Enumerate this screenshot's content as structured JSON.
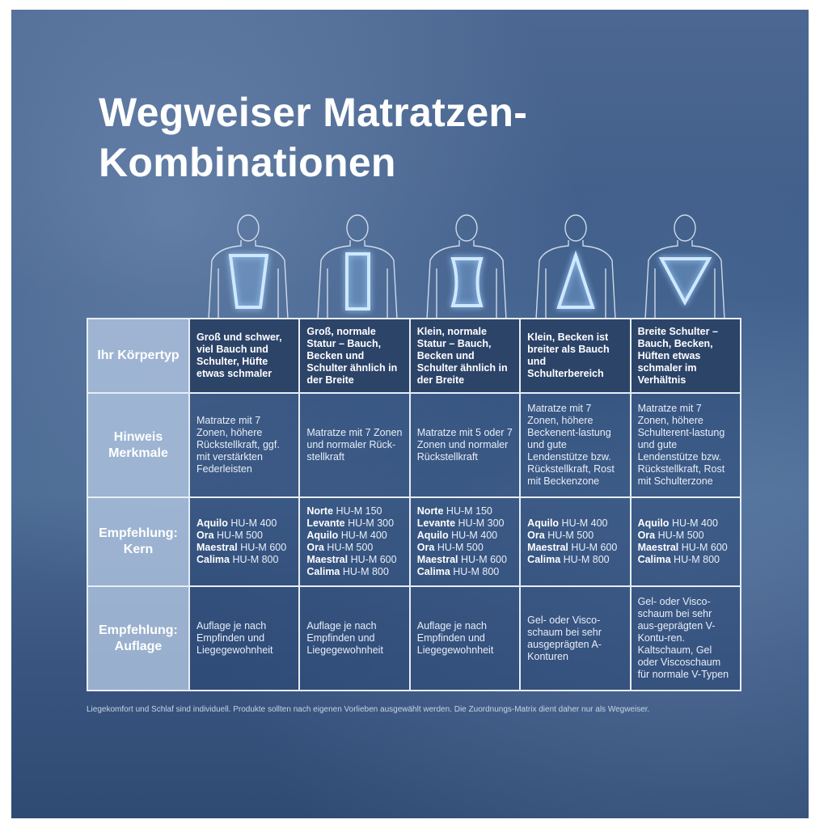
{
  "title": [
    "Wegweiser Matratzen-",
    "Kombinationen"
  ],
  "figures": [
    {
      "shape": "trapezoid-icon"
    },
    {
      "shape": "rectangle-icon"
    },
    {
      "shape": "hourglass-icon"
    },
    {
      "shape": "triangle-a-icon"
    },
    {
      "shape": "triangle-v-icon"
    }
  ],
  "table": {
    "rows": [
      {
        "label": "Ihr Körpertyp",
        "cells": [
          "Groß und schwer, viel Bauch und Schulter, Hüfte etwas schmaler",
          "Groß, normale Statur – Bauch, Becken und Schulter ähnlich in der Breite",
          "Klein, normale Statur – Bauch, Becken und Schulter ähnlich in der Breite",
          "Klein, Becken ist breiter als Bauch und Schulterbereich",
          "Breite Schulter – Bauch, Becken, Hüften etwas schmaler im Verhältnis"
        ]
      },
      {
        "label": "Hinweis Merkmale",
        "cells": [
          "Matratze mit 7 Zonen, höhere Rückstellkraft, ggf. mit verstärkten Federleisten",
          "Matratze mit 7 Zonen und normaler Rück-stellkraft",
          "Matratze mit 5 oder 7 Zonen und normaler Rückstellkraft",
          "Matratze mit 7 Zonen, höhere Beckenent-lastung und gute Lendenstütze bzw. Rückstellkraft, Rost mit Beckenzone",
          "Matratze mit 7 Zonen, höhere Schulterent-lastung und gute Lendenstütze bzw. Rückstellkraft, Rost mit Schulterzone"
        ]
      },
      {
        "label": "Empfehlung: Kern",
        "kern": [
          [
            {
              "n": "Aquilo",
              "m": "HU-M 400"
            },
            {
              "n": "Ora",
              "m": "HU-M 500"
            },
            {
              "n": "Maestral",
              "m": "HU-M 600"
            },
            {
              "n": "Calima",
              "m": "HU-M 800"
            }
          ],
          [
            {
              "n": "Norte",
              "m": "HU-M 150"
            },
            {
              "n": "Levante",
              "m": "HU-M 300"
            },
            {
              "n": "Aquilo",
              "m": "HU-M 400"
            },
            {
              "n": "Ora",
              "m": "HU-M 500"
            },
            {
              "n": "Maestral",
              "m": "HU-M 600"
            },
            {
              "n": "Calima",
              "m": "HU-M 800"
            }
          ],
          [
            {
              "n": "Norte",
              "m": "HU-M 150"
            },
            {
              "n": "Levante",
              "m": "HU-M 300"
            },
            {
              "n": "Aquilo",
              "m": "HU-M 400"
            },
            {
              "n": "Ora",
              "m": "HU-M 500"
            },
            {
              "n": "Maestral",
              "m": "HU-M 600"
            },
            {
              "n": "Calima",
              "m": "HU-M 800"
            }
          ],
          [
            {
              "n": "Aquilo",
              "m": "HU-M 400"
            },
            {
              "n": "Ora",
              "m": "HU-M 500"
            },
            {
              "n": "Maestral",
              "m": "HU-M 600"
            },
            {
              "n": "Calima",
              "m": "HU-M 800"
            }
          ],
          [
            {
              "n": "Aquilo",
              "m": "HU-M 400"
            },
            {
              "n": "Ora",
              "m": "HU-M 500"
            },
            {
              "n": "Maestral",
              "m": "HU-M 600"
            },
            {
              "n": "Calima",
              "m": "HU-M 800"
            }
          ]
        ]
      },
      {
        "label": "Empfehlung: Auflage",
        "cells": [
          "Auflage je nach Empfinden und Liegegewohnheit",
          "Auflage je nach Empfinden und Liegegewohnheit",
          "Auflage je nach Empfinden und Liegegewohnheit",
          "Gel- oder Visco-schaum bei sehr ausgeprägten A-Konturen",
          "Gel- oder Visco-schaum bei sehr aus-geprägten V-Kontu-ren. Kaltschaum, Gel oder Viscoschaum für normale V-Typen"
        ]
      }
    ]
  },
  "footnote": "Liegekomfort und Schlaf sind individuell. Produkte sollten nach eigenen Vorlieben ausgewählt werden. Die Zuordnungs-Matrix dient daher nur als Wegweiser.",
  "colors": {
    "header": "#2d4469",
    "label": "#aac0dc",
    "glow": "#bfe0ff"
  }
}
